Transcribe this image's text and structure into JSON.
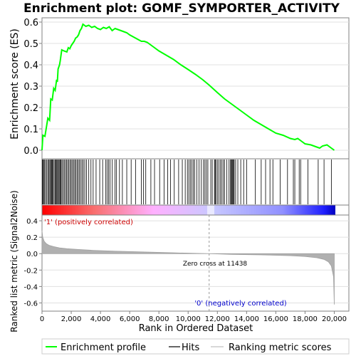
{
  "chart_data": {
    "type": "line",
    "title": "Enrichment plot: GOMF_SYMPORTER_ACTIVITY",
    "xlabel": "Rank in Ordered Dataset",
    "ylabel_top": "Enrichment score (ES)",
    "ylabel_bottom": "Ranked list metric (Signal2Noise)",
    "x_ticks": [
      0,
      2000,
      4000,
      6000,
      8000,
      10000,
      12000,
      14000,
      16000,
      18000,
      20000
    ],
    "x_tick_labels": [
      "0",
      "2,000",
      "4,000",
      "6,000",
      "8,000",
      "10,000",
      "12,000",
      "14,000",
      "16,000",
      "18,000",
      "20,000"
    ],
    "xlim": [
      0,
      21000
    ],
    "es_panel": {
      "ylim": [
        -0.04,
        0.62
      ],
      "y_ticks": [
        0.0,
        0.1,
        0.2,
        0.3,
        0.4,
        0.5,
        0.6
      ],
      "y_tick_labels": [
        "0.0",
        "0.1",
        "0.2",
        "0.3",
        "0.4",
        "0.5",
        "0.6"
      ],
      "series_name": "Enrichment profile",
      "color": "#00ff00",
      "x": [
        0,
        60,
        200,
        400,
        520,
        600,
        700,
        800,
        900,
        1000,
        1050,
        1100,
        1200,
        1250,
        1350,
        1500,
        1700,
        1800,
        1900,
        2000,
        2100,
        2200,
        2300,
        2400,
        2500,
        2600,
        2700,
        2800,
        3000,
        3200,
        3400,
        3600,
        3800,
        4000,
        4200,
        4400,
        4600,
        4800,
        5000,
        5200,
        5400,
        5600,
        5800,
        6000,
        6400,
        6800,
        7000,
        7200,
        7600,
        8000,
        8500,
        9000,
        9500,
        10000,
        10500,
        11000,
        11438,
        12000,
        12500,
        13000,
        13500,
        14000,
        14500,
        15000,
        15500,
        16000,
        16500,
        17000,
        17300,
        17500,
        17800,
        18000,
        18400,
        18800,
        19000,
        19200,
        19500,
        19800,
        20000
      ],
      "y": [
        0.0,
        0.07,
        0.065,
        0.15,
        0.14,
        0.24,
        0.235,
        0.29,
        0.28,
        0.33,
        0.32,
        0.38,
        0.4,
        0.42,
        0.47,
        0.465,
        0.46,
        0.48,
        0.475,
        0.49,
        0.5,
        0.51,
        0.525,
        0.53,
        0.54,
        0.56,
        0.57,
        0.59,
        0.58,
        0.585,
        0.575,
        0.58,
        0.57,
        0.565,
        0.575,
        0.57,
        0.578,
        0.56,
        0.57,
        0.565,
        0.56,
        0.555,
        0.55,
        0.54,
        0.525,
        0.51,
        0.51,
        0.505,
        0.485,
        0.465,
        0.445,
        0.425,
        0.4,
        0.378,
        0.355,
        0.33,
        0.305,
        0.27,
        0.24,
        0.215,
        0.19,
        0.165,
        0.14,
        0.12,
        0.1,
        0.08,
        0.07,
        0.055,
        0.05,
        0.055,
        0.04,
        0.03,
        0.025,
        0.015,
        0.01,
        0.02,
        0.025,
        0.01,
        0.0
      ]
    },
    "hits": [
      30,
      60,
      110,
      180,
      250,
      330,
      410,
      480,
      540,
      600,
      650,
      700,
      760,
      830,
      900,
      960,
      1010,
      1070,
      1120,
      1180,
      1240,
      1290,
      1360,
      1440,
      1520,
      1600,
      1680,
      1760,
      1840,
      1920,
      2000,
      2080,
      2160,
      2240,
      2320,
      2400,
      2480,
      2560,
      2650,
      2740,
      2830,
      2930,
      3050,
      3200,
      3350,
      3500,
      3700,
      3950,
      4150,
      4350,
      4450,
      4550,
      4650,
      4800,
      5000,
      5100,
      5300,
      5500,
      5800,
      6100,
      6400,
      6800,
      6950,
      7100,
      7450,
      7700,
      8050,
      8350,
      8600,
      8800,
      9050,
      9350,
      9600,
      9800,
      9950,
      10050,
      10150,
      10250,
      10350,
      10450,
      10600,
      10750,
      10900,
      11050,
      11150,
      11250,
      11350,
      11550,
      11650,
      11800,
      11850,
      11900,
      12000,
      12100,
      12200,
      12300,
      12400,
      12500,
      12650,
      12800,
      12900,
      12950,
      13000,
      13050,
      13100,
      13150,
      13250,
      13400,
      13600,
      13800,
      14000,
      14600,
      15000,
      15300,
      15600,
      15800,
      16300,
      16800,
      17200,
      17300,
      17600,
      17700,
      18200,
      18900,
      19300,
      19800
    ],
    "metric_panel": {
      "ylim": [
        -0.7,
        0.47
      ],
      "y_ticks": [
        -0.6,
        -0.4,
        -0.2,
        0.0,
        0.2,
        0.4
      ],
      "y_tick_labels": [
        "-0.6",
        "-0.4",
        "-0.2",
        "0.0",
        "0.2",
        "0.4"
      ],
      "x": [
        0,
        50,
        150,
        300,
        500,
        800,
        1200,
        1700,
        2500,
        3500,
        5000,
        7000,
        9000,
        11438,
        13000,
        15000,
        17000,
        18000,
        18800,
        19300,
        19600,
        19800,
        19950,
        20000
      ],
      "y": [
        0.28,
        0.2,
        0.15,
        0.12,
        0.1,
        0.085,
        0.07,
        0.06,
        0.05,
        0.04,
        0.03,
        0.02,
        0.01,
        0.0,
        -0.01,
        -0.015,
        -0.025,
        -0.035,
        -0.05,
        -0.07,
        -0.1,
        -0.15,
        -0.28,
        -0.62
      ],
      "color": "#b0b0b0"
    },
    "zero_cross_label": "Zero cross at 11438",
    "zero_cross_x": 11438,
    "positive_label": "'1' (positively correlated)",
    "negative_label": "'0' (negatively correlated)",
    "positive_label_color": "#cc0000",
    "negative_label_color": "#0000cc",
    "legend": {
      "position": "bottom",
      "items": [
        {
          "label": "Enrichment profile",
          "color": "#00ff00"
        },
        {
          "label": "Hits",
          "color": "#000000"
        },
        {
          "label": "Ranking metric scores",
          "color": "#c0c0c0"
        }
      ]
    }
  }
}
